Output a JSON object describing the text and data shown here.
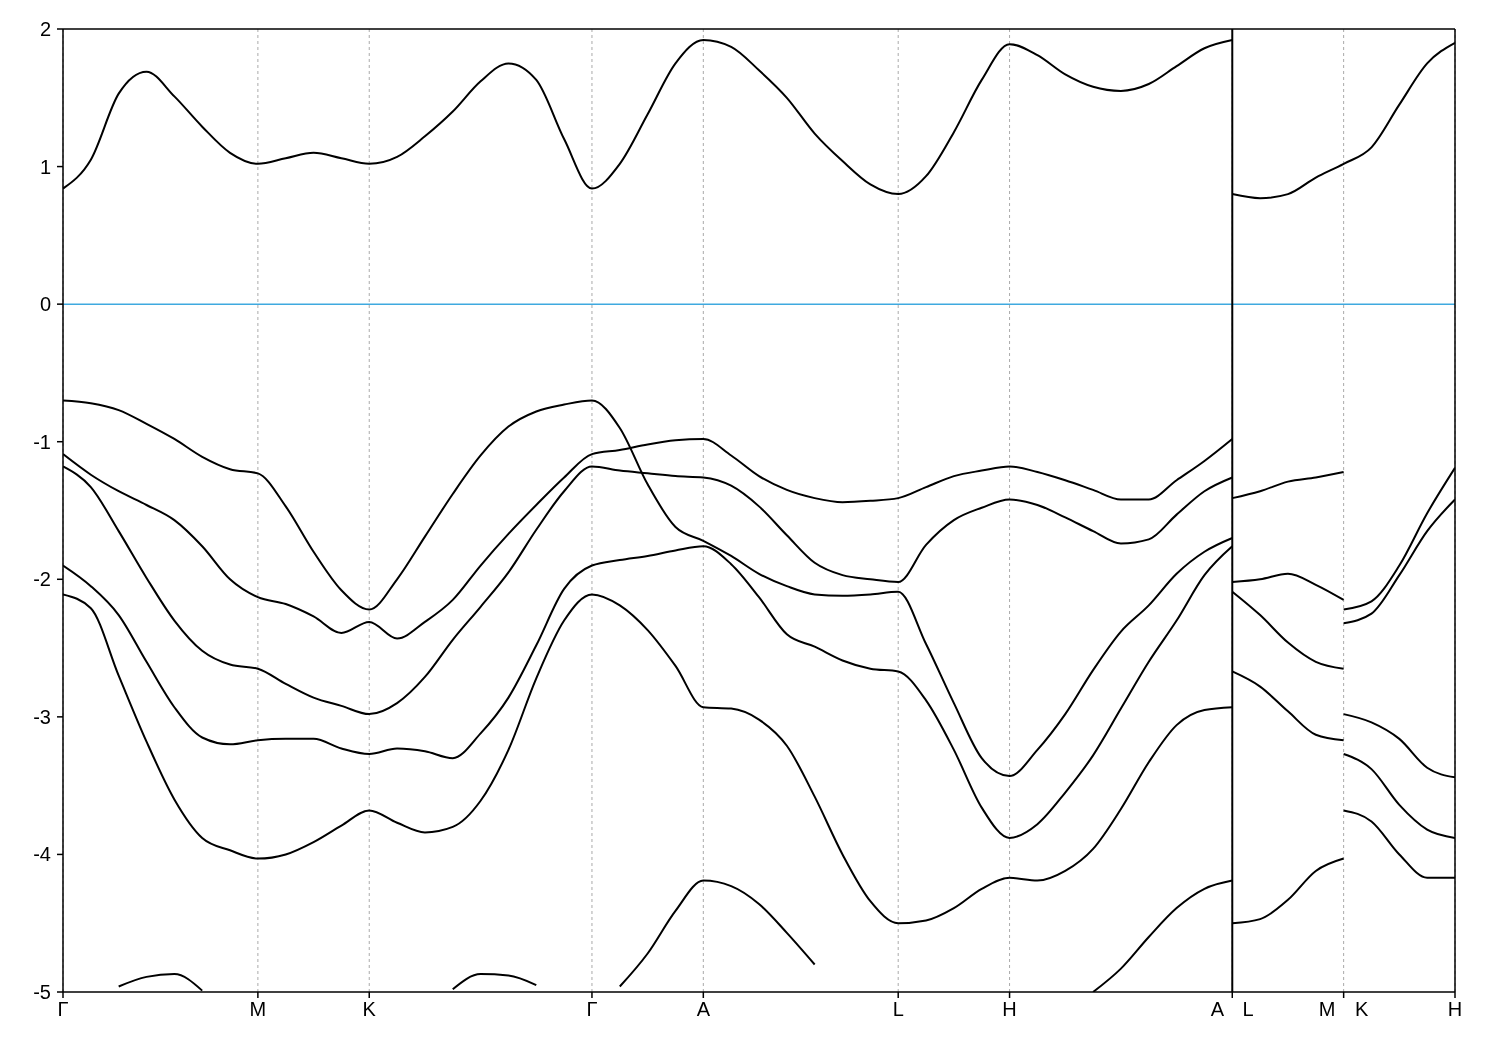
{
  "chart_data": {
    "type": "line",
    "grid": "x",
    "categories": [
      "Γ",
      null,
      null,
      null,
      null,
      null,
      null,
      "M",
      null,
      null,
      null,
      "K",
      null,
      null,
      null,
      null,
      null,
      null,
      null,
      "Γ",
      null,
      null,
      null,
      "A",
      null,
      null,
      null,
      null,
      null,
      null,
      "L",
      null,
      null,
      null,
      "H",
      null,
      null,
      null,
      null,
      null,
      null,
      null,
      "A L",
      null,
      null,
      null,
      "M K",
      null,
      null,
      null,
      "H"
    ],
    "ylim": [
      -5,
      2
    ],
    "yticks": [
      -5,
      -4,
      -3,
      -2,
      -1,
      0,
      1,
      2
    ],
    "ref_lines": [
      {
        "axis": "y",
        "value": 0,
        "color": "#3fa9df"
      },
      {
        "axis": "x",
        "value": "A L",
        "color": "#000000"
      }
    ],
    "series": [
      {
        "color": "#000000",
        "values": [
          0.84,
          1.05,
          1.53,
          1.69,
          1.51,
          1.29,
          1.1,
          1.02,
          1.06,
          1.1,
          1.06,
          1.02,
          1.07,
          1.22,
          1.4,
          1.62,
          1.75,
          1.63,
          1.2,
          0.84,
          1.02,
          1.38,
          1.75,
          1.92,
          1.87,
          1.7,
          1.5,
          1.24,
          1.04,
          0.87,
          0.8,
          0.93,
          1.25,
          1.63,
          1.89,
          1.81,
          1.67,
          1.58,
          1.55,
          1.6,
          1.73,
          1.86,
          1.92,
          null,
          null,
          null,
          null,
          null,
          null,
          null,
          null
        ]
      },
      {
        "color": "#000000",
        "values": [
          null,
          null,
          null,
          null,
          null,
          null,
          null,
          null,
          null,
          null,
          null,
          null,
          null,
          null,
          null,
          null,
          null,
          null,
          null,
          null,
          null,
          null,
          null,
          null,
          null,
          null,
          null,
          null,
          null,
          null,
          null,
          null,
          null,
          null,
          null,
          null,
          null,
          null,
          null,
          null,
          null,
          null,
          0.8,
          0.77,
          0.8,
          0.92,
          1.02,
          1.14,
          1.45,
          1.75,
          1.9
        ]
      },
      {
        "color": "#000000",
        "values": [
          -0.7,
          -0.72,
          -0.77,
          -0.87,
          -0.98,
          -1.11,
          -1.2,
          -1.23,
          -1.47,
          -1.8,
          -2.08,
          -2.22,
          -2.0,
          -1.69,
          -1.38,
          -1.1,
          -0.89,
          -0.78,
          -0.73,
          -0.7,
          -0.9,
          -1.31,
          -1.62,
          -1.72,
          -1.83,
          -1.96,
          -2.05,
          -2.11,
          -2.12,
          -2.11,
          -2.09,
          -2.47,
          -2.9,
          -3.3,
          -3.43,
          -3.24,
          -2.98,
          -2.66,
          -2.38,
          -2.19,
          -1.96,
          -1.8,
          -1.7,
          null,
          null,
          null,
          null,
          null,
          null,
          null,
          null
        ]
      },
      {
        "color": "#000000",
        "values": [
          -1.09,
          -1.24,
          -1.36,
          -1.46,
          -1.57,
          -1.76,
          -2.0,
          -2.13,
          -2.18,
          -2.27,
          -2.39,
          -2.31,
          -2.43,
          -2.31,
          -2.15,
          -1.9,
          -1.67,
          -1.46,
          -1.26,
          -1.09,
          -1.06,
          -1.02,
          -0.99,
          -0.98,
          -1.1,
          -1.25,
          -1.35,
          -1.41,
          -1.44,
          -1.43,
          -1.41,
          -1.33,
          -1.25,
          -1.21,
          -1.18,
          -1.22,
          -1.28,
          -1.35,
          -1.42,
          -1.42,
          -1.28,
          -1.14,
          -0.98,
          null,
          null,
          null,
          null,
          null,
          null,
          null,
          null
        ]
      },
      {
        "color": "#000000",
        "values": [
          -1.18,
          -1.33,
          -1.65,
          -1.99,
          -2.3,
          -2.52,
          -2.62,
          -2.65,
          -2.76,
          -2.86,
          -2.92,
          -2.98,
          -2.9,
          -2.71,
          -2.44,
          -2.2,
          -1.95,
          -1.64,
          -1.36,
          -1.18,
          -1.21,
          -1.23,
          -1.25,
          -1.26,
          -1.32,
          -1.47,
          -1.68,
          -1.88,
          -1.97,
          -2.0,
          -2.02,
          -1.75,
          -1.57,
          -1.48,
          -1.42,
          -1.46,
          -1.55,
          -1.65,
          -1.74,
          -1.71,
          -1.53,
          -1.36,
          -1.26,
          null,
          null,
          null,
          null,
          null,
          null,
          null,
          null
        ]
      },
      {
        "color": "#000000",
        "values": [
          -1.9,
          -2.05,
          -2.26,
          -2.6,
          -2.93,
          -3.15,
          -3.2,
          -3.17,
          -3.16,
          -3.16,
          -3.23,
          -3.27,
          -3.23,
          -3.25,
          -3.3,
          -3.12,
          -2.86,
          -2.48,
          -2.07,
          -1.9,
          -1.86,
          -1.83,
          -1.79,
          -1.76,
          -1.89,
          -2.13,
          -2.4,
          -2.49,
          -2.59,
          -2.65,
          -2.67,
          -2.88,
          -3.24,
          -3.66,
          -3.88,
          -3.78,
          -3.55,
          -3.28,
          -2.94,
          -2.6,
          -2.3,
          -1.97,
          -1.76,
          null,
          null,
          null,
          null,
          null,
          null,
          null,
          null
        ]
      },
      {
        "color": "#000000",
        "values": [
          -2.11,
          -2.21,
          -2.7,
          -3.18,
          -3.6,
          -3.88,
          -3.97,
          -4.03,
          -4.0,
          -3.91,
          -3.79,
          -3.68,
          -3.77,
          -3.84,
          -3.8,
          -3.61,
          -3.24,
          -2.72,
          -2.3,
          -2.11,
          -2.19,
          -2.37,
          -2.63,
          -2.93,
          -2.94,
          -3.02,
          -3.21,
          -3.58,
          -4.0,
          -4.34,
          -4.5,
          -4.48,
          -4.39,
          -4.25,
          -4.17,
          -4.19,
          -4.12,
          -3.96,
          -3.67,
          -3.33,
          -3.06,
          -2.95,
          -2.93,
          null,
          null,
          null,
          null,
          null,
          null,
          null,
          null
        ]
      },
      {
        "color": "#000000",
        "values": [
          null,
          null,
          null,
          null,
          null,
          null,
          null,
          null,
          null,
          null,
          null,
          null,
          null,
          null,
          null,
          null,
          null,
          null,
          null,
          null,
          -4.96,
          -4.72,
          -4.41,
          -4.19,
          -4.23,
          -4.36,
          -4.57,
          -4.8,
          null,
          null,
          null,
          null,
          null,
          null,
          null,
          null,
          null,
          null,
          null,
          null,
          null,
          null,
          null,
          null,
          null,
          null,
          null,
          null,
          null,
          null,
          null
        ]
      },
      {
        "color": "#000000",
        "values": [
          null,
          null,
          null,
          null,
          null,
          null,
          null,
          null,
          null,
          null,
          null,
          null,
          null,
          null,
          null,
          null,
          null,
          null,
          null,
          null,
          null,
          null,
          null,
          null,
          null,
          null,
          null,
          null,
          null,
          null,
          null,
          null,
          null,
          null,
          null,
          null,
          null,
          -5,
          -4.83,
          -4.6,
          -4.39,
          -4.25,
          -4.19,
          null,
          null,
          null,
          null,
          null,
          null,
          null,
          null
        ]
      },
      {
        "color": "#000000",
        "values": [
          null,
          null,
          -4.96,
          -4.89,
          -4.87,
          -4.99,
          null,
          null,
          null,
          null,
          null,
          null,
          null,
          null,
          null,
          null,
          null,
          null,
          null,
          null,
          null,
          null,
          null,
          null,
          null,
          null,
          null,
          null,
          null,
          null,
          null,
          null,
          null,
          null,
          null,
          null,
          null,
          null,
          null,
          null,
          null,
          null,
          null,
          null,
          null,
          null,
          null,
          null,
          null,
          null,
          null
        ]
      },
      {
        "color": "#000000",
        "values": [
          null,
          null,
          null,
          null,
          null,
          null,
          null,
          null,
          null,
          null,
          null,
          null,
          null,
          null,
          -4.98,
          -4.87,
          -4.88,
          -4.95,
          null,
          null,
          null,
          null,
          null,
          null,
          null,
          null,
          null,
          null,
          null,
          null,
          null,
          null,
          null,
          null,
          null,
          null,
          null,
          null,
          null,
          null,
          null,
          null,
          null,
          null,
          null,
          null,
          null,
          null,
          null,
          null,
          null
        ]
      },
      {
        "color": "#000000",
        "values": [
          null,
          null,
          null,
          null,
          null,
          null,
          null,
          null,
          null,
          null,
          null,
          null,
          null,
          null,
          null,
          null,
          null,
          null,
          null,
          null,
          null,
          null,
          null,
          null,
          null,
          null,
          null,
          null,
          null,
          null,
          null,
          null,
          null,
          null,
          null,
          null,
          null,
          null,
          null,
          null,
          null,
          null,
          -1.41,
          -1.36,
          -1.29,
          -1.26,
          -1.22,
          null,
          null,
          null,
          null
        ]
      },
      {
        "color": "#000000",
        "values": [
          null,
          null,
          null,
          null,
          null,
          null,
          null,
          null,
          null,
          null,
          null,
          null,
          null,
          null,
          null,
          null,
          null,
          null,
          null,
          null,
          null,
          null,
          null,
          null,
          null,
          null,
          null,
          null,
          null,
          null,
          null,
          null,
          null,
          null,
          null,
          null,
          null,
          null,
          null,
          null,
          null,
          null,
          null,
          null,
          null,
          null,
          -2.22,
          -2.16,
          -1.9,
          -1.52,
          -1.19
        ]
      },
      {
        "color": "#000000",
        "values": [
          null,
          null,
          null,
          null,
          null,
          null,
          null,
          null,
          null,
          null,
          null,
          null,
          null,
          null,
          null,
          null,
          null,
          null,
          null,
          null,
          null,
          null,
          null,
          null,
          null,
          null,
          null,
          null,
          null,
          null,
          null,
          null,
          null,
          null,
          null,
          null,
          null,
          null,
          null,
          null,
          null,
          null,
          -2.02,
          -2.0,
          -1.96,
          -2.04,
          -2.15,
          null,
          null,
          null,
          null
        ]
      },
      {
        "color": "#000000",
        "values": [
          null,
          null,
          null,
          null,
          null,
          null,
          null,
          null,
          null,
          null,
          null,
          null,
          null,
          null,
          null,
          null,
          null,
          null,
          null,
          null,
          null,
          null,
          null,
          null,
          null,
          null,
          null,
          null,
          null,
          null,
          null,
          null,
          null,
          null,
          null,
          null,
          null,
          null,
          null,
          null,
          null,
          null,
          null,
          null,
          null,
          null,
          -2.32,
          -2.25,
          -1.97,
          -1.65,
          -1.42
        ]
      },
      {
        "color": "#000000",
        "values": [
          null,
          null,
          null,
          null,
          null,
          null,
          null,
          null,
          null,
          null,
          null,
          null,
          null,
          null,
          null,
          null,
          null,
          null,
          null,
          null,
          null,
          null,
          null,
          null,
          null,
          null,
          null,
          null,
          null,
          null,
          null,
          null,
          null,
          null,
          null,
          null,
          null,
          null,
          null,
          null,
          null,
          null,
          -2.09,
          -2.26,
          -2.46,
          -2.6,
          -2.65,
          null,
          null,
          null,
          null
        ]
      },
      {
        "color": "#000000",
        "values": [
          null,
          null,
          null,
          null,
          null,
          null,
          null,
          null,
          null,
          null,
          null,
          null,
          null,
          null,
          null,
          null,
          null,
          null,
          null,
          null,
          null,
          null,
          null,
          null,
          null,
          null,
          null,
          null,
          null,
          null,
          null,
          null,
          null,
          null,
          null,
          null,
          null,
          null,
          null,
          null,
          null,
          null,
          null,
          null,
          null,
          null,
          -2.98,
          -3.04,
          -3.16,
          -3.37,
          -3.44
        ]
      },
      {
        "color": "#000000",
        "values": [
          null,
          null,
          null,
          null,
          null,
          null,
          null,
          null,
          null,
          null,
          null,
          null,
          null,
          null,
          null,
          null,
          null,
          null,
          null,
          null,
          null,
          null,
          null,
          null,
          null,
          null,
          null,
          null,
          null,
          null,
          null,
          null,
          null,
          null,
          null,
          null,
          null,
          null,
          null,
          null,
          null,
          null,
          -2.67,
          -2.78,
          -2.96,
          -3.13,
          -3.17,
          null,
          null,
          null,
          null
        ]
      },
      {
        "color": "#000000",
        "values": [
          null,
          null,
          null,
          null,
          null,
          null,
          null,
          null,
          null,
          null,
          null,
          null,
          null,
          null,
          null,
          null,
          null,
          null,
          null,
          null,
          null,
          null,
          null,
          null,
          null,
          null,
          null,
          null,
          null,
          null,
          null,
          null,
          null,
          null,
          null,
          null,
          null,
          null,
          null,
          null,
          null,
          null,
          null,
          null,
          null,
          null,
          -3.27,
          -3.38,
          -3.64,
          -3.82,
          -3.88
        ]
      },
      {
        "color": "#000000",
        "values": [
          null,
          null,
          null,
          null,
          null,
          null,
          null,
          null,
          null,
          null,
          null,
          null,
          null,
          null,
          null,
          null,
          null,
          null,
          null,
          null,
          null,
          null,
          null,
          null,
          null,
          null,
          null,
          null,
          null,
          null,
          null,
          null,
          null,
          null,
          null,
          null,
          null,
          null,
          null,
          null,
          null,
          null,
          -4.5,
          -4.47,
          -4.33,
          -4.12,
          -4.03,
          null,
          null,
          null,
          null
        ]
      },
      {
        "color": "#000000",
        "values": [
          null,
          null,
          null,
          null,
          null,
          null,
          null,
          null,
          null,
          null,
          null,
          null,
          null,
          null,
          null,
          null,
          null,
          null,
          null,
          null,
          null,
          null,
          null,
          null,
          null,
          null,
          null,
          null,
          null,
          null,
          null,
          null,
          null,
          null,
          null,
          null,
          null,
          null,
          null,
          null,
          null,
          null,
          null,
          null,
          null,
          null,
          -3.68,
          -3.76,
          -4.0,
          -4.17,
          -4.17
        ]
      }
    ]
  }
}
